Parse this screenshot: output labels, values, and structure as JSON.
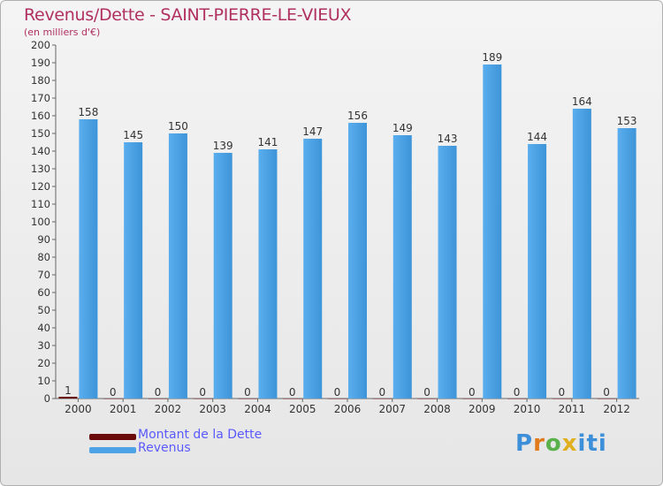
{
  "header": {
    "title": "Revenus/Dette - SAINT-PIERRE-LE-VIEUX",
    "subtitle": "(en milliers d'€)"
  },
  "legend": {
    "items": [
      {
        "label": "Montant de la Dette",
        "color": "#6b0a0a"
      },
      {
        "label": "Revenus",
        "color": "#4ea3e6"
      }
    ]
  },
  "logo": {
    "text": "Proxiti"
  },
  "chart_data": {
    "type": "bar",
    "title": "Revenus/Dette - SAINT-PIERRE-LE-VIEUX",
    "ylabel": "(en milliers d'€)",
    "xlabel": "",
    "ylim": [
      0,
      200
    ],
    "ytick_step": 10,
    "grid": false,
    "legend_position": "bottom-left",
    "categories": [
      "2000",
      "2001",
      "2002",
      "2003",
      "2004",
      "2005",
      "2006",
      "2007",
      "2008",
      "2009",
      "2010",
      "2011",
      "2012"
    ],
    "series": [
      {
        "name": "Montant de la Dette",
        "color": "#6b0a0a",
        "values": [
          1,
          0,
          0,
          0,
          0,
          0,
          0,
          0,
          0,
          0,
          0,
          0,
          0
        ]
      },
      {
        "name": "Revenus",
        "color": "#4ea3e6",
        "values": [
          158,
          145,
          150,
          139,
          141,
          147,
          156,
          149,
          143,
          189,
          144,
          164,
          153
        ]
      }
    ]
  }
}
